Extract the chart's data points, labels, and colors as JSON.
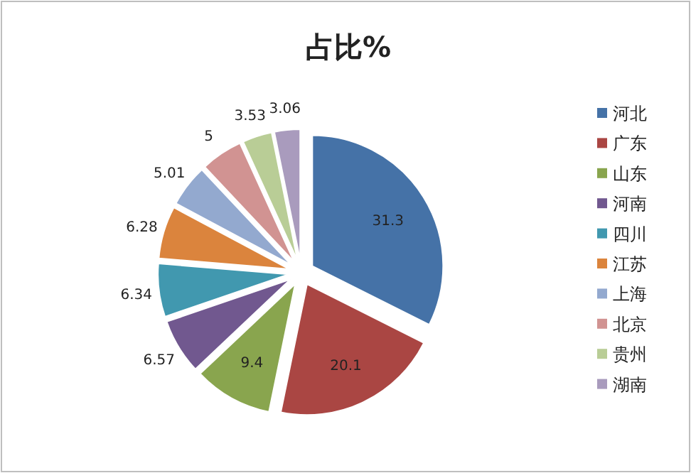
{
  "chart_data": {
    "type": "pie",
    "title": "占比%",
    "categories": [
      "河北",
      "广东",
      "山东",
      "河南",
      "四川",
      "江苏",
      "上海",
      "北京",
      "贵州",
      "湖南"
    ],
    "values": [
      31.3,
      20.1,
      9.4,
      6.57,
      6.34,
      6.28,
      5.01,
      5,
      3.53,
      3.06
    ],
    "colors": [
      "#4572a7",
      "#aa4643",
      "#89a54e",
      "#71588f",
      "#4198af",
      "#db843d",
      "#93a9cf",
      "#d19392",
      "#b9cd96",
      "#a99bbd"
    ],
    "data_labels": true,
    "legend": "right"
  }
}
